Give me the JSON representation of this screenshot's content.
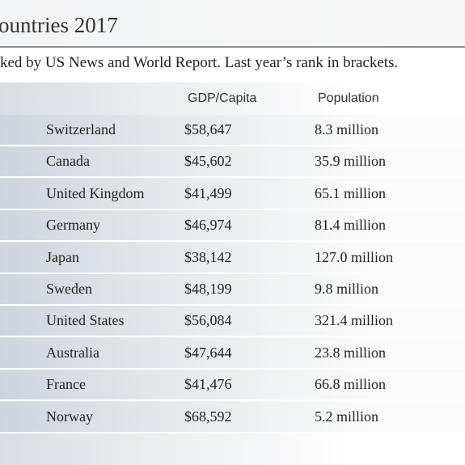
{
  "header": {
    "title": "ountries 2017",
    "subtitle": "ked by US News and World Report. Last year’s rank in brackets."
  },
  "table": {
    "columns": [
      "GDP/Capita",
      "Population"
    ],
    "rows": [
      [
        "Switzerland",
        "$58,647",
        "8.3 million"
      ],
      [
        "Canada",
        "$45,602",
        "35.9 million"
      ],
      [
        "United Kingdom",
        "$41,499",
        "65.1 million"
      ],
      [
        "Germany",
        "$46,974",
        "81.4 million"
      ],
      [
        "Japan",
        "$38,142",
        "127.0 million"
      ],
      [
        "Sweden",
        "$48,199",
        "9.8 million"
      ],
      [
        "United States",
        "$56,084",
        "321.4 million"
      ],
      [
        "Australia",
        "$47,644",
        "23.8 million"
      ],
      [
        "France",
        "$41,476",
        "66.8 million"
      ],
      [
        "Norway",
        "$68,592",
        "5.2 million"
      ]
    ]
  }
}
